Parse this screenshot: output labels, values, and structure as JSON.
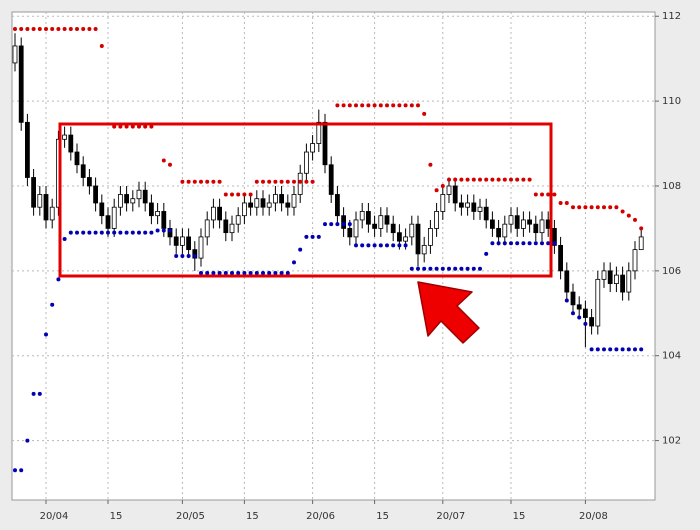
{
  "chart_data": {
    "type": "candlestick",
    "categories": [
      null,
      null,
      null,
      null,
      null,
      "20/04",
      null,
      null,
      null,
      null,
      null,
      null,
      null,
      null,
      null,
      "15",
      null,
      null,
      null,
      null,
      null,
      null,
      null,
      null,
      null,
      null,
      null,
      "20/05",
      null,
      null,
      null,
      null,
      null,
      null,
      null,
      null,
      null,
      "15",
      null,
      null,
      null,
      null,
      null,
      null,
      null,
      null,
      null,
      null,
      "20/06",
      null,
      null,
      null,
      null,
      null,
      null,
      null,
      null,
      null,
      "15",
      null,
      null,
      null,
      null,
      null,
      null,
      null,
      null,
      null,
      null,
      "20/07",
      null,
      null,
      null,
      null,
      null,
      null,
      null,
      null,
      null,
      null,
      "15",
      null,
      null,
      null,
      null,
      null,
      null,
      null,
      null,
      null,
      null,
      null,
      "20/08",
      null,
      null,
      null,
      null,
      null,
      null,
      null,
      null,
      null
    ],
    "open": [
      110.9,
      111.3,
      109.5,
      108.2,
      107.5,
      107.8,
      107.2,
      107.5,
      109.1,
      109.2,
      108.8,
      108.5,
      108.2,
      108.0,
      107.6,
      107.3,
      107.0,
      107.5,
      107.8,
      107.6,
      107.7,
      107.9,
      107.6,
      107.3,
      107.4,
      107.0,
      106.8,
      106.6,
      106.8,
      106.5,
      106.3,
      106.8,
      107.2,
      107.5,
      107.2,
      106.9,
      107.1,
      107.3,
      107.6,
      107.5,
      107.7,
      107.5,
      107.6,
      107.8,
      107.6,
      107.5,
      107.8,
      108.3,
      108.8,
      109.0,
      109.5,
      108.5,
      107.8,
      107.3,
      107.0,
      106.8,
      107.2,
      107.4,
      107.1,
      107.0,
      107.3,
      107.1,
      106.9,
      106.7,
      106.8,
      107.1,
      106.4,
      106.6,
      107.0,
      107.4,
      107.8,
      108.0,
      107.6,
      107.5,
      107.6,
      107.4,
      107.5,
      107.2,
      107.0,
      106.8,
      107.1,
      107.3,
      107.0,
      107.2,
      107.1,
      106.9,
      107.2,
      107.0,
      106.6,
      106.0,
      105.5,
      105.2,
      105.1,
      104.9,
      104.7,
      105.8,
      106.0,
      105.7,
      105.9,
      105.5,
      106.0,
      106.5
    ],
    "high": [
      111.6,
      111.5,
      109.7,
      108.4,
      108.0,
      108.0,
      107.7,
      109.3,
      109.4,
      109.4,
      109.0,
      108.7,
      108.4,
      108.2,
      107.8,
      107.5,
      107.7,
      108.0,
      108.0,
      107.9,
      108.1,
      108.1,
      107.8,
      107.6,
      107.6,
      107.2,
      107.0,
      107.0,
      107.0,
      106.7,
      107.0,
      107.4,
      107.7,
      107.7,
      107.4,
      107.3,
      107.5,
      107.8,
      107.8,
      107.9,
      107.9,
      107.8,
      108.0,
      108.0,
      107.8,
      108.0,
      108.5,
      109.0,
      109.2,
      109.8,
      109.7,
      108.7,
      108.0,
      107.5,
      107.2,
      107.4,
      107.6,
      107.6,
      107.3,
      107.5,
      107.5,
      107.3,
      107.1,
      107.0,
      107.3,
      107.3,
      106.8,
      107.2,
      107.6,
      108.0,
      108.2,
      108.2,
      107.8,
      107.8,
      107.8,
      107.7,
      107.7,
      107.4,
      107.2,
      107.3,
      107.5,
      107.5,
      107.4,
      107.4,
      107.3,
      107.4,
      107.4,
      107.2,
      106.8,
      106.2,
      105.7,
      105.4,
      105.3,
      105.1,
      106.0,
      106.2,
      106.2,
      106.1,
      106.1,
      106.2,
      106.7,
      107.0
    ],
    "low": [
      110.7,
      109.3,
      108.0,
      107.3,
      107.3,
      107.0,
      107.0,
      107.3,
      108.9,
      108.6,
      108.3,
      108.0,
      107.8,
      107.4,
      107.1,
      106.8,
      106.8,
      107.3,
      107.4,
      107.4,
      107.5,
      107.4,
      107.1,
      107.1,
      106.8,
      106.6,
      106.4,
      106.4,
      106.3,
      106.0,
      106.1,
      106.6,
      107.0,
      107.0,
      106.7,
      106.7,
      106.9,
      107.1,
      107.3,
      107.3,
      107.3,
      107.3,
      107.4,
      107.4,
      107.3,
      107.3,
      107.6,
      108.1,
      108.6,
      108.8,
      108.3,
      107.6,
      107.1,
      106.8,
      106.6,
      106.6,
      107.0,
      106.9,
      106.8,
      106.8,
      106.9,
      106.7,
      106.5,
      106.5,
      106.6,
      106.1,
      106.2,
      106.4,
      106.8,
      107.2,
      107.6,
      107.4,
      107.3,
      107.3,
      107.2,
      107.2,
      107.0,
      106.8,
      106.6,
      106.6,
      106.9,
      106.8,
      106.8,
      106.9,
      106.7,
      106.7,
      106.8,
      106.4,
      105.8,
      105.3,
      105.0,
      104.9,
      104.2,
      104.5,
      104.5,
      105.6,
      105.5,
      105.5,
      105.3,
      105.3,
      105.8,
      106.6
    ],
    "close": [
      111.3,
      109.5,
      108.2,
      107.5,
      107.8,
      107.2,
      107.5,
      109.1,
      109.2,
      108.8,
      108.5,
      108.2,
      108.0,
      107.6,
      107.3,
      107.0,
      107.5,
      107.8,
      107.6,
      107.7,
      107.9,
      107.6,
      107.3,
      107.4,
      107.0,
      106.8,
      106.6,
      106.8,
      106.5,
      106.3,
      106.8,
      107.2,
      107.5,
      107.2,
      106.9,
      107.1,
      107.3,
      107.6,
      107.5,
      107.7,
      107.5,
      107.6,
      107.8,
      107.6,
      107.5,
      107.8,
      108.3,
      108.8,
      109.0,
      109.5,
      108.5,
      107.8,
      107.3,
      107.0,
      106.8,
      107.2,
      107.4,
      107.1,
      107.0,
      107.3,
      107.1,
      106.9,
      106.7,
      106.8,
      107.1,
      106.4,
      106.6,
      107.0,
      107.4,
      107.8,
      108.0,
      107.6,
      107.5,
      107.6,
      107.4,
      107.5,
      107.2,
      107.0,
      106.8,
      107.1,
      107.3,
      107.0,
      107.2,
      107.1,
      106.9,
      107.2,
      107.0,
      106.6,
      106.0,
      105.5,
      105.2,
      105.1,
      104.9,
      104.7,
      105.8,
      106.0,
      105.7,
      105.9,
      105.5,
      106.0,
      106.5,
      106.8
    ],
    "up_color": "#ffffff",
    "down_color": "#000000",
    "sar": [
      {
        "color": "#d40000",
        "values": [
          111.7,
          111.7,
          111.7,
          111.7,
          111.7,
          111.7,
          111.7,
          111.7,
          111.7,
          111.7,
          111.7,
          111.7,
          111.7,
          111.7,
          111.3,
          null,
          109.4,
          109.4,
          109.4,
          109.4,
          109.4,
          109.4,
          109.4,
          null,
          108.6,
          108.5,
          null,
          108.1,
          108.1,
          108.1,
          108.1,
          108.1,
          108.1,
          108.1,
          107.8,
          107.8,
          107.8,
          107.8,
          107.8,
          108.1,
          108.1,
          108.1,
          108.1,
          108.1,
          108.1,
          108.1,
          108.1,
          108.1,
          108.1,
          null,
          null,
          null,
          109.9,
          109.9,
          109.9,
          109.9,
          109.9,
          109.9,
          109.9,
          109.9,
          109.9,
          109.9,
          109.9,
          109.9,
          109.9,
          109.9,
          109.7,
          108.5,
          107.9,
          108.0,
          108.15,
          108.15,
          108.15,
          108.15,
          108.15,
          108.15,
          108.15,
          108.15,
          108.15,
          108.15,
          108.15,
          108.15,
          108.15,
          108.15,
          107.8,
          107.8,
          107.8,
          107.8,
          107.6,
          107.6,
          107.5,
          107.5,
          107.5,
          107.5,
          107.5,
          107.5,
          107.5,
          107.5,
          107.4,
          107.3,
          107.2,
          107.0
        ]
      },
      {
        "color": "#0000b4",
        "values": [
          101.3,
          101.3,
          102.0,
          103.1,
          103.1,
          104.5,
          105.2,
          105.8,
          106.75,
          106.9,
          106.9,
          106.9,
          106.9,
          106.9,
          106.9,
          106.9,
          106.9,
          106.9,
          106.9,
          106.9,
          106.9,
          106.9,
          106.9,
          106.95,
          106.95,
          106.95,
          106.35,
          106.35,
          106.35,
          106.35,
          105.95,
          105.95,
          105.95,
          105.95,
          105.95,
          105.95,
          105.95,
          105.95,
          105.95,
          105.95,
          105.95,
          105.95,
          105.95,
          105.95,
          105.95,
          106.2,
          106.5,
          106.8,
          106.8,
          106.8,
          107.1,
          107.1,
          107.1,
          107.1,
          107.1,
          106.6,
          106.6,
          106.6,
          106.6,
          106.6,
          106.6,
          106.6,
          106.6,
          106.6,
          106.05,
          106.05,
          106.05,
          106.05,
          106.05,
          106.05,
          106.05,
          106.05,
          106.05,
          106.05,
          106.05,
          106.05,
          106.4,
          106.65,
          106.65,
          106.65,
          106.65,
          106.65,
          106.65,
          106.65,
          106.65,
          106.65,
          106.65,
          106.65,
          null,
          105.3,
          105.0,
          104.9,
          104.75,
          104.15,
          104.15,
          104.15,
          104.15,
          104.15,
          104.15,
          104.15,
          104.15,
          104.15
        ]
      }
    ],
    "ylim": [
      100.6,
      112.1
    ],
    "yticks": [
      102,
      104,
      106,
      108,
      110,
      112
    ],
    "grid": true
  }
}
